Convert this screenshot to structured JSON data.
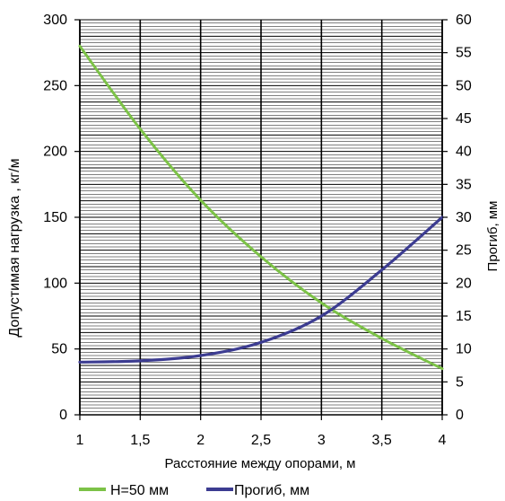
{
  "chart_data": {
    "type": "line",
    "xlabel": "Расстояние между опорами, м",
    "ylabel": "Допустимая нагрузка , кг/м",
    "y2label": "Прогиб, мм",
    "xlim": [
      1,
      4
    ],
    "ylim": [
      0,
      300
    ],
    "y2lim": [
      0,
      60
    ],
    "x_ticks": [
      "1",
      "1,5",
      "2",
      "2,5",
      "3",
      "3,5",
      "4"
    ],
    "y_ticks": [
      "0",
      "50",
      "100",
      "150",
      "200",
      "250",
      "300"
    ],
    "y2_ticks": [
      "0",
      "5",
      "10",
      "15",
      "20",
      "25",
      "30",
      "35",
      "40",
      "45",
      "50",
      "55",
      "60"
    ],
    "grid": true,
    "legend_position": "bottom",
    "series": [
      {
        "name": "H=50 мм",
        "axis": "left",
        "color": "#7CC247",
        "x": [
          1,
          1.5,
          2,
          2.5,
          3,
          3.5,
          4
        ],
        "y": [
          280,
          217,
          163,
          120,
          85,
          58,
          35
        ]
      },
      {
        "name": "Прогиб, мм",
        "axis": "right",
        "color": "#3C3C91",
        "x": [
          1,
          1.5,
          2,
          2.5,
          3,
          3.5,
          4
        ],
        "y": [
          8,
          8.2,
          9,
          11,
          15,
          22,
          30
        ]
      }
    ]
  }
}
